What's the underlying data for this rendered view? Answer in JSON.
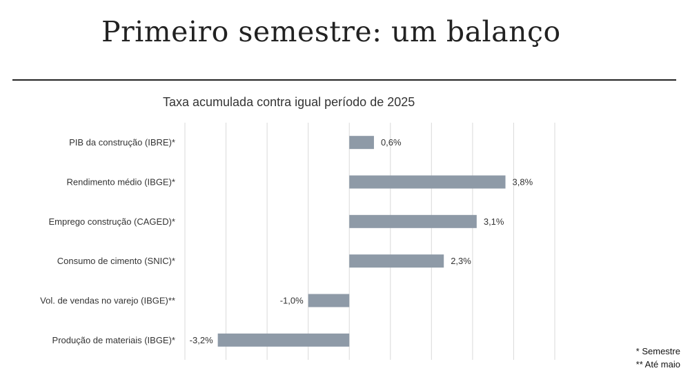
{
  "header": {
    "title": "Primeiro semestre: um balanço"
  },
  "chart_data": {
    "type": "bar",
    "orientation": "horizontal",
    "title": "Taxa acumulada contra igual período de 2025",
    "xlabel": "",
    "ylabel": "",
    "categories": [
      "PIB da construção (IBRE)*",
      "Rendimento médio (IBGE)*",
      "Emprego construção (CAGED)*",
      "Consumo de cimento (SNIC)*",
      "Vol. de vendas no varejo (IBGE)**",
      "Produção de materiais (IBGE)*"
    ],
    "values": [
      0.6,
      3.8,
      3.1,
      2.3,
      -1.0,
      -3.2
    ],
    "data_labels": [
      "0,6%",
      "3,8%",
      "3,1%",
      "2,3%",
      "-1,0%",
      "-3,2%"
    ],
    "xlim": [
      -4.0,
      5.0
    ],
    "grid": true,
    "bar_color": "#8e9aa7"
  },
  "footnotes": [
    "* Semestre",
    "** Até maio"
  ]
}
